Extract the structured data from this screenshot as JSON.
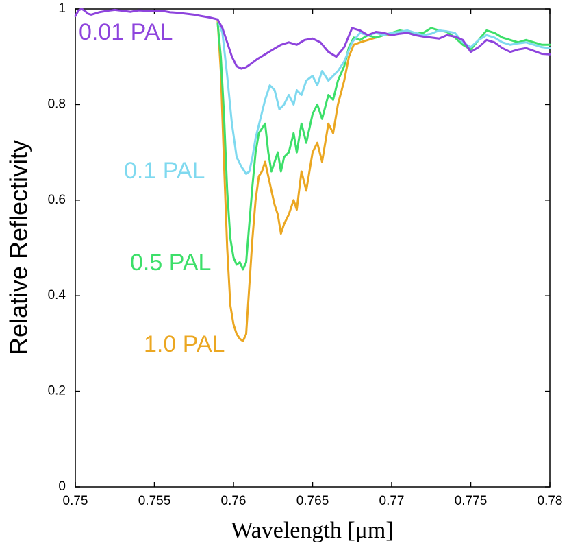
{
  "chart_data": {
    "type": "line",
    "title": "",
    "xlabel": "Wavelength [μm]",
    "ylabel": "Relative Reflectivity",
    "xlim": [
      0.75,
      0.78
    ],
    "ylim": [
      0,
      1
    ],
    "xticks": [
      0.75,
      0.755,
      0.76,
      0.765,
      0.77,
      0.775,
      0.78
    ],
    "xtick_labels": [
      "0.75",
      "0.755",
      "0.76",
      "0.765",
      "0.77",
      "0.775",
      "0.78"
    ],
    "yticks": [
      0,
      0.2,
      0.4,
      0.6,
      0.8,
      1
    ],
    "ytick_labels": [
      "0",
      "0.2",
      "0.4",
      "0.6",
      "0.8",
      "1"
    ],
    "grid": false,
    "series": [
      {
        "name": "0.01 PAL",
        "color": "#8e44dd",
        "x": [
          0.75,
          0.7502,
          0.7504,
          0.7506,
          0.7508,
          0.751,
          0.7515,
          0.752,
          0.7525,
          0.753,
          0.7535,
          0.754,
          0.7545,
          0.755,
          0.7555,
          0.756,
          0.7565,
          0.757,
          0.7575,
          0.758,
          0.7585,
          0.759,
          0.7593,
          0.7596,
          0.7599,
          0.7602,
          0.7605,
          0.7608,
          0.7611,
          0.7615,
          0.762,
          0.7625,
          0.763,
          0.7635,
          0.764,
          0.7645,
          0.765,
          0.7655,
          0.766,
          0.7665,
          0.767,
          0.7675,
          0.768,
          0.7685,
          0.769,
          0.7695,
          0.77,
          0.7705,
          0.771,
          0.7715,
          0.772,
          0.7725,
          0.773,
          0.7735,
          0.774,
          0.7745,
          0.775,
          0.7755,
          0.776,
          0.7765,
          0.777,
          0.7775,
          0.778,
          0.7785,
          0.779,
          0.7795,
          0.78
        ],
        "values": [
          0.985,
          0.997,
          1.0,
          0.996,
          0.99,
          0.988,
          0.993,
          0.996,
          0.998,
          0.996,
          0.994,
          0.997,
          0.996,
          0.995,
          0.996,
          0.993,
          0.992,
          0.99,
          0.988,
          0.985,
          0.982,
          0.978,
          0.96,
          0.93,
          0.9,
          0.88,
          0.875,
          0.878,
          0.885,
          0.895,
          0.905,
          0.915,
          0.925,
          0.93,
          0.925,
          0.935,
          0.938,
          0.93,
          0.91,
          0.9,
          0.92,
          0.96,
          0.955,
          0.945,
          0.952,
          0.95,
          0.945,
          0.948,
          0.95,
          0.945,
          0.942,
          0.94,
          0.938,
          0.945,
          0.942,
          0.935,
          0.91,
          0.92,
          0.935,
          0.93,
          0.918,
          0.91,
          0.915,
          0.918,
          0.912,
          0.906,
          0.905
        ]
      },
      {
        "name": "0.1 PAL",
        "color": "#7fd9ef",
        "x": [
          0.759,
          0.7593,
          0.7596,
          0.7599,
          0.7602,
          0.7605,
          0.7608,
          0.761,
          0.7612,
          0.7614,
          0.7617,
          0.762,
          0.7623,
          0.7626,
          0.7629,
          0.7632,
          0.7635,
          0.7638,
          0.764,
          0.7643,
          0.7646,
          0.765,
          0.7653,
          0.7656,
          0.766,
          0.7663,
          0.7666,
          0.767,
          0.7675,
          0.768,
          0.7685,
          0.769,
          0.7695,
          0.77,
          0.7705,
          0.771,
          0.7715,
          0.772,
          0.7725,
          0.773,
          0.7735,
          0.774,
          0.7745,
          0.775,
          0.7755,
          0.776,
          0.7765,
          0.777,
          0.7775,
          0.778,
          0.7785,
          0.779,
          0.7795,
          0.78
        ],
        "values": [
          0.978,
          0.95,
          0.86,
          0.76,
          0.69,
          0.67,
          0.655,
          0.66,
          0.69,
          0.73,
          0.77,
          0.81,
          0.84,
          0.83,
          0.79,
          0.8,
          0.82,
          0.8,
          0.83,
          0.82,
          0.85,
          0.86,
          0.84,
          0.87,
          0.85,
          0.86,
          0.87,
          0.89,
          0.93,
          0.95,
          0.945,
          0.95,
          0.945,
          0.95,
          0.952,
          0.955,
          0.95,
          0.945,
          0.948,
          0.955,
          0.953,
          0.95,
          0.93,
          0.92,
          0.935,
          0.945,
          0.94,
          0.93,
          0.925,
          0.928,
          0.93,
          0.925,
          0.92,
          0.918
        ]
      },
      {
        "name": "0.5 PAL",
        "color": "#3ddf6a",
        "x": [
          0.759,
          0.7592,
          0.7594,
          0.7596,
          0.7598,
          0.76,
          0.7602,
          0.7604,
          0.7606,
          0.7608,
          0.761,
          0.7612,
          0.7614,
          0.7616,
          0.7618,
          0.762,
          0.7622,
          0.7624,
          0.7626,
          0.7628,
          0.763,
          0.7632,
          0.7635,
          0.7638,
          0.764,
          0.7643,
          0.7646,
          0.765,
          0.7653,
          0.7656,
          0.766,
          0.7663,
          0.7666,
          0.767,
          0.7673,
          0.7676,
          0.768,
          0.7685,
          0.769,
          0.7695,
          0.77,
          0.7705,
          0.771,
          0.7715,
          0.772,
          0.7725,
          0.773,
          0.7735,
          0.774,
          0.7745,
          0.775,
          0.7755,
          0.776,
          0.7765,
          0.777,
          0.7775,
          0.778,
          0.7785,
          0.779,
          0.7795,
          0.78
        ],
        "values": [
          0.97,
          0.9,
          0.78,
          0.62,
          0.52,
          0.48,
          0.465,
          0.47,
          0.455,
          0.47,
          0.55,
          0.63,
          0.7,
          0.74,
          0.75,
          0.76,
          0.7,
          0.66,
          0.68,
          0.7,
          0.66,
          0.69,
          0.7,
          0.74,
          0.7,
          0.76,
          0.72,
          0.78,
          0.8,
          0.77,
          0.82,
          0.81,
          0.85,
          0.88,
          0.92,
          0.94,
          0.935,
          0.945,
          0.94,
          0.945,
          0.95,
          0.955,
          0.952,
          0.948,
          0.95,
          0.96,
          0.955,
          0.952,
          0.94,
          0.925,
          0.915,
          0.935,
          0.955,
          0.95,
          0.94,
          0.935,
          0.93,
          0.935,
          0.93,
          0.925,
          0.925
        ]
      },
      {
        "name": "1.0 PAL",
        "color": "#eba722",
        "x": [
          0.759,
          0.7592,
          0.7594,
          0.7596,
          0.7598,
          0.76,
          0.7602,
          0.7604,
          0.7606,
          0.7608,
          0.761,
          0.7612,
          0.7614,
          0.7616,
          0.7618,
          0.762,
          0.7622,
          0.7624,
          0.7626,
          0.7628,
          0.763,
          0.7632,
          0.7635,
          0.7638,
          0.764,
          0.7643,
          0.7646,
          0.765,
          0.7653,
          0.7656,
          0.766,
          0.7663,
          0.7666,
          0.767,
          0.7673,
          0.7676,
          0.768,
          0.7685,
          0.769,
          0.7695,
          0.77
        ],
        "values": [
          0.975,
          0.87,
          0.68,
          0.5,
          0.38,
          0.34,
          0.32,
          0.31,
          0.305,
          0.32,
          0.42,
          0.52,
          0.6,
          0.65,
          0.66,
          0.68,
          0.65,
          0.62,
          0.59,
          0.57,
          0.53,
          0.55,
          0.57,
          0.6,
          0.58,
          0.66,
          0.62,
          0.7,
          0.72,
          0.68,
          0.76,
          0.74,
          0.8,
          0.85,
          0.9,
          0.925,
          0.93,
          0.935,
          0.94,
          0.945,
          0.945
        ]
      }
    ],
    "annotations": [
      {
        "text": "0.01 PAL",
        "series": "0.01 PAL"
      },
      {
        "text": "0.1 PAL",
        "series": "0.1 PAL"
      },
      {
        "text": "0.5 PAL",
        "series": "0.5 PAL"
      },
      {
        "text": "1.0 PAL",
        "series": "1.0 PAL"
      }
    ]
  }
}
